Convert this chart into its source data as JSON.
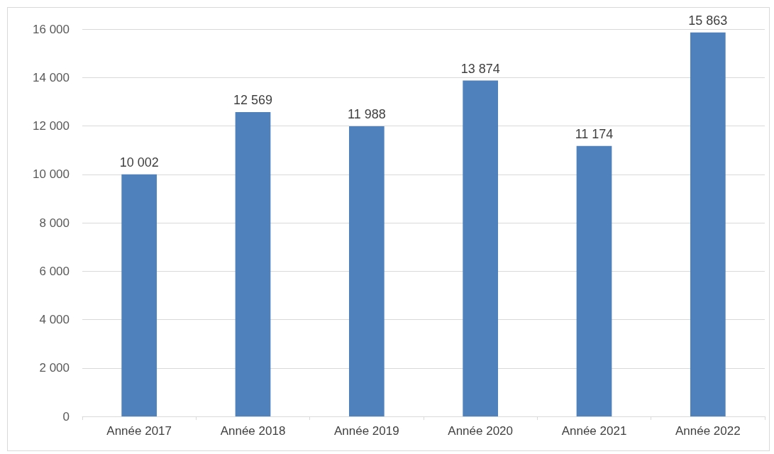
{
  "chart_data": {
    "type": "bar",
    "categories": [
      "Année 2017",
      "Année 2018",
      "Année 2019",
      "Année 2020",
      "Année 2021",
      "Année 2022"
    ],
    "values": [
      10002,
      12569,
      11988,
      13874,
      11174,
      15863
    ],
    "value_labels": [
      "10 002",
      "12 569",
      "11 988",
      "13 874",
      "11 174",
      "15 863"
    ],
    "color": "#4f81bd",
    "ylim": [
      0,
      16000
    ],
    "yticks": [
      {
        "value": 0,
        "label": "0"
      },
      {
        "value": 2000,
        "label": "2 000"
      },
      {
        "value": 4000,
        "label": "4 000"
      },
      {
        "value": 6000,
        "label": "6 000"
      },
      {
        "value": 8000,
        "label": "8 000"
      },
      {
        "value": 10000,
        "label": "10 000"
      },
      {
        "value": 12000,
        "label": "12 000"
      },
      {
        "value": 14000,
        "label": "14 000"
      },
      {
        "value": 16000,
        "label": "16 000"
      }
    ],
    "grid": "y"
  }
}
